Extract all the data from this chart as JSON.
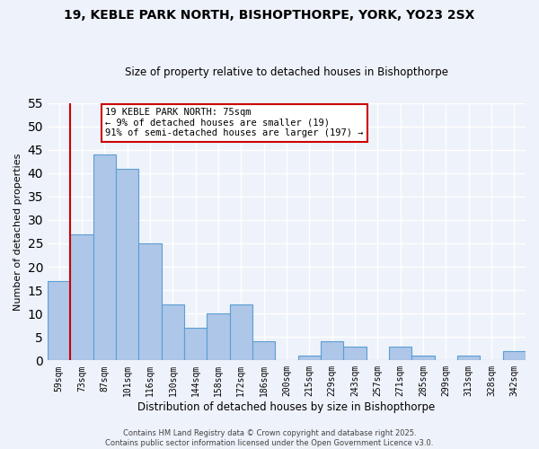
{
  "title": "19, KEBLE PARK NORTH, BISHOPTHORPE, YORK, YO23 2SX",
  "subtitle": "Size of property relative to detached houses in Bishopthorpe",
  "xlabel": "Distribution of detached houses by size in Bishopthorpe",
  "ylabel": "Number of detached properties",
  "bar_labels": [
    "59sqm",
    "73sqm",
    "87sqm",
    "101sqm",
    "116sqm",
    "130sqm",
    "144sqm",
    "158sqm",
    "172sqm",
    "186sqm",
    "200sqm",
    "215sqm",
    "229sqm",
    "243sqm",
    "257sqm",
    "271sqm",
    "285sqm",
    "299sqm",
    "313sqm",
    "328sqm",
    "342sqm"
  ],
  "bar_values": [
    17,
    27,
    44,
    41,
    25,
    12,
    7,
    10,
    12,
    4,
    0,
    1,
    4,
    3,
    0,
    3,
    1,
    0,
    1,
    0,
    2
  ],
  "bar_color": "#aec6e8",
  "bar_edge_color": "#5a9fd4",
  "vline_color": "#cc0000",
  "ylim": [
    0,
    55
  ],
  "yticks": [
    0,
    5,
    10,
    15,
    20,
    25,
    30,
    35,
    40,
    45,
    50,
    55
  ],
  "annotation_title": "19 KEBLE PARK NORTH: 75sqm",
  "annotation_line1": "← 9% of detached houses are smaller (19)",
  "annotation_line2": "91% of semi-detached houses are larger (197) →",
  "annotation_box_color": "#ffffff",
  "annotation_box_edge": "#cc0000",
  "background_color": "#eef2fa",
  "grid_color": "#ffffff",
  "footer_line1": "Contains HM Land Registry data © Crown copyright and database right 2025.",
  "footer_line2": "Contains public sector information licensed under the Open Government Licence v3.0."
}
